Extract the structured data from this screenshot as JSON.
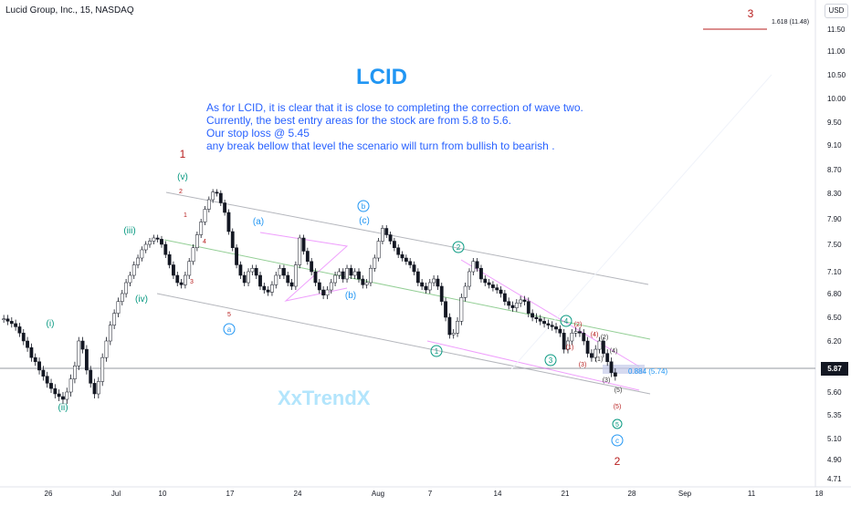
{
  "header": {
    "symbol_line": "Lucid Group, Inc., 15, NASDAQ",
    "currency": "USD",
    "last_price": "5.87"
  },
  "chart_data": {
    "type": "candlestick",
    "symbol": "LCID",
    "title": "LCID",
    "note_lines": [
      "As for LCID, it is clear that it is close to completing the correction of wave two.",
      " Currently, the best entry areas for the stock are from 5.8 to 5.6.",
      "Our stop loss @ 5.45",
      "any break bellow that level the scenario will turn from bullish  to bearish ."
    ],
    "watermark": "XxTrendX",
    "x_tick_labels": [
      "26",
      "Jul",
      "10",
      "17",
      "24",
      "Aug",
      "7",
      "14",
      "21",
      "28",
      "Sep",
      "11",
      "18"
    ],
    "y_tick_labels": [
      "11.50",
      "11.00",
      "10.50",
      "10.00",
      "9.50",
      "9.10",
      "8.70",
      "8.30",
      "7.90",
      "7.50",
      "7.10",
      "6.80",
      "6.50",
      "6.20",
      "5.87",
      "5.60",
      "5.35",
      "5.10",
      "4.90",
      "4.71"
    ],
    "price_path": [
      [
        6.48,
        6.45
      ],
      [
        6.42,
        6.38
      ],
      [
        6.3,
        6.2
      ],
      [
        6.12,
        6.0
      ],
      [
        5.95,
        5.85
      ],
      [
        5.78,
        5.7
      ],
      [
        5.64,
        5.58
      ],
      [
        5.55,
        5.52
      ],
      [
        5.6,
        5.75
      ],
      [
        5.9,
        6.2
      ],
      [
        6.1,
        5.85
      ],
      [
        5.7,
        5.58
      ],
      [
        5.72,
        6.0
      ],
      [
        6.2,
        6.4
      ],
      [
        6.55,
        6.7
      ],
      [
        6.8,
        6.95
      ],
      [
        7.05,
        7.2
      ],
      [
        7.3,
        7.42
      ],
      [
        7.5,
        7.55
      ],
      [
        7.6,
        7.58
      ],
      [
        7.5,
        7.35
      ],
      [
        7.2,
        7.05
      ],
      [
        6.95,
        6.92
      ],
      [
        7.05,
        7.25
      ],
      [
        7.45,
        7.65
      ],
      [
        7.85,
        8.05
      ],
      [
        8.2,
        8.32
      ],
      [
        8.3,
        8.15
      ],
      [
        8.0,
        7.7
      ],
      [
        7.45,
        7.2
      ],
      [
        7.05,
        6.95
      ],
      [
        7.1,
        7.15
      ],
      [
        7.05,
        6.9
      ],
      [
        6.85,
        6.82
      ],
      [
        6.92,
        7.05
      ],
      [
        7.15,
        7.05
      ],
      [
        6.95,
        6.9
      ],
      [
        7.2,
        7.6
      ],
      [
        7.4,
        7.25
      ],
      [
        7.1,
        6.95
      ],
      [
        6.85,
        6.78
      ],
      [
        6.85,
        6.95
      ],
      [
        7.05,
        7.1
      ],
      [
        7.0,
        7.15
      ],
      [
        7.05,
        7.1
      ],
      [
        7.0,
        6.92
      ],
      [
        6.95,
        7.15
      ],
      [
        7.3,
        7.55
      ],
      [
        7.75,
        7.65
      ],
      [
        7.55,
        7.45
      ],
      [
        7.35,
        7.3
      ],
      [
        7.25,
        7.2
      ],
      [
        7.1,
        6.95
      ],
      [
        6.9,
        6.85
      ],
      [
        6.95,
        7.0
      ],
      [
        6.9,
        6.7
      ],
      [
        6.5,
        6.28
      ],
      [
        6.3,
        6.45
      ],
      [
        6.75,
        6.9
      ],
      [
        7.1,
        7.25
      ],
      [
        7.15,
        7.0
      ],
      [
        6.95,
        6.92
      ],
      [
        6.88,
        6.85
      ],
      [
        6.8,
        6.7
      ],
      [
        6.65,
        6.62
      ],
      [
        6.68,
        6.72
      ],
      [
        6.7,
        6.55
      ],
      [
        6.5,
        6.48
      ],
      [
        6.45,
        6.42
      ],
      [
        6.4,
        6.38
      ],
      [
        6.35,
        6.3
      ],
      [
        6.1,
        6.2
      ],
      [
        6.3,
        6.32
      ],
      [
        6.3,
        6.2
      ],
      [
        6.05,
        6.0
      ],
      [
        6.1,
        6.2
      ],
      [
        6.05,
        5.95
      ],
      [
        5.82,
        5.78
      ]
    ],
    "annotations": {
      "degree_labels": [
        "1",
        "2",
        "3"
      ],
      "subwave_labels": [
        "(i)",
        "(ii)",
        "(iii)",
        "(iv)",
        "(v)",
        "(a)",
        "(b)",
        "(c)"
      ],
      "circled_labels": [
        "a",
        "b",
        "c",
        "1",
        "2",
        "3",
        "4"
      ],
      "minor_labels": [
        "1",
        "2",
        "3",
        "4",
        "5",
        "(1)",
        "(2)",
        "(3)",
        "(4)",
        "(5)"
      ],
      "fib_label": "1.618 (11.48)",
      "target_label": "0.884 (5.74)"
    },
    "colors": {
      "background": "#ffffff",
      "candle_up": "#131722",
      "candle_down": "#131722",
      "title": "#2196f3",
      "note_text": "#2962ff",
      "watermark": "#b3e5fc",
      "wave_teal": "#089981",
      "wave_blue": "#2196f3",
      "wave_red": "#b71c1c",
      "channel": "#9598a1",
      "pink_line": "#e040fb",
      "green_line": "#4caf50",
      "zone_fill": "#c5cae9"
    }
  }
}
